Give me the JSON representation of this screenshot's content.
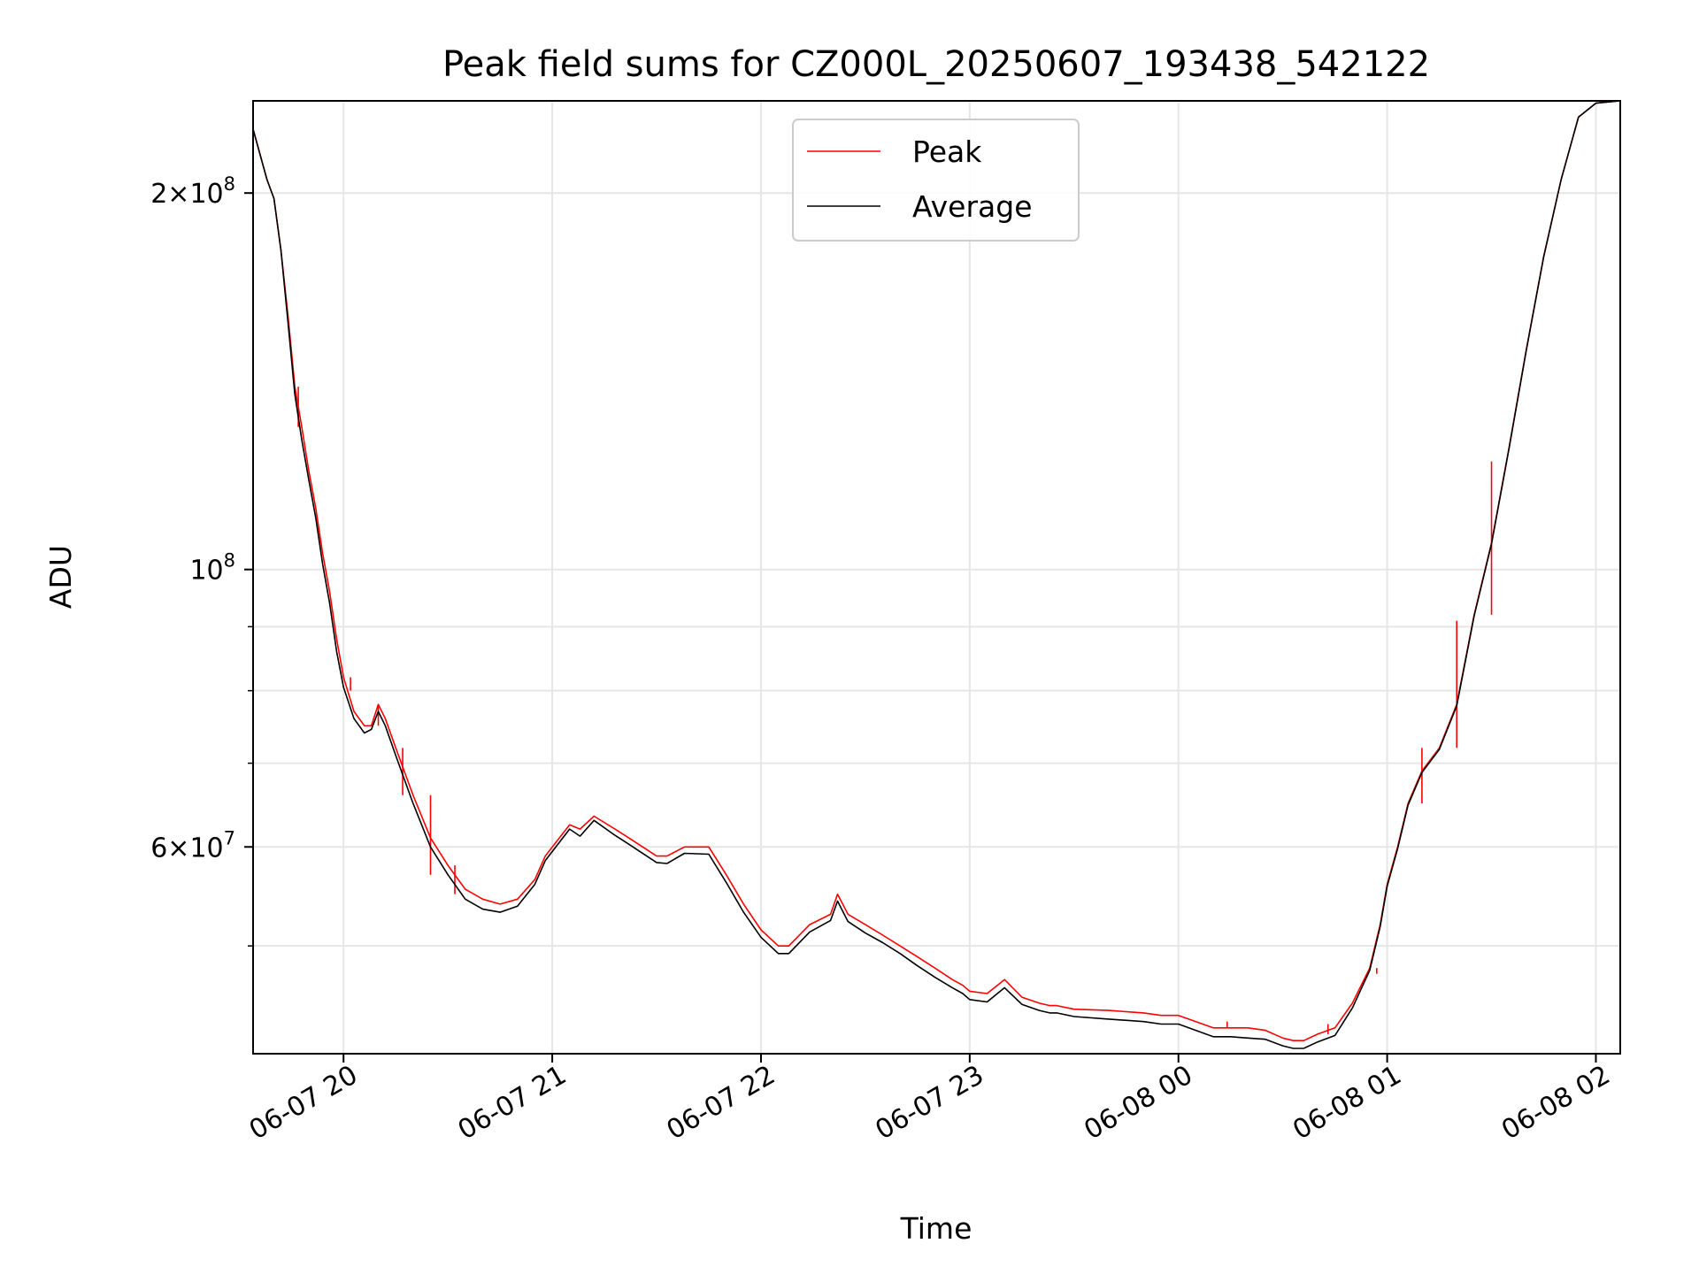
{
  "chart_data": {
    "type": "line",
    "title": "Peak field sums for CZ000L_20250607_193438_542122",
    "xlabel": "Time",
    "ylabel": "ADU",
    "y_scale": "log",
    "grid": true,
    "legend_position": "top-center",
    "xlim": [
      "2025-06-07 19:34",
      "2025-06-08 02:07"
    ],
    "ylim": [
      41000000,
      237000000
    ],
    "x_ticks": [
      {
        "value": "2025-06-07 20:00",
        "label": "06-07 20"
      },
      {
        "value": "2025-06-07 21:00",
        "label": "06-07 21"
      },
      {
        "value": "2025-06-07 22:00",
        "label": "06-07 22"
      },
      {
        "value": "2025-06-07 23:00",
        "label": "06-07 23"
      },
      {
        "value": "2025-06-08 00:00",
        "label": "06-08 00"
      },
      {
        "value": "2025-06-08 01:00",
        "label": "06-08 01"
      },
      {
        "value": "2025-06-08 02:00",
        "label": "06-08 02"
      }
    ],
    "y_ticks_major": [
      {
        "value": 200000000,
        "mant": "2",
        "exp": "8"
      },
      {
        "value": 100000000,
        "mant": "",
        "exp": "8"
      },
      {
        "value": 60000000,
        "mant": "6",
        "exp": "7"
      }
    ],
    "y_ticks_minor": [
      50000000,
      70000000,
      80000000,
      90000000
    ],
    "series": [
      {
        "name": "Peak",
        "color": "#ff0000",
        "x": [
          "2025-06-07 19:34",
          "2025-06-07 19:38",
          "2025-06-07 19:40",
          "2025-06-07 19:42",
          "2025-06-07 19:44",
          "2025-06-07 19:46",
          "2025-06-07 19:48",
          "2025-06-07 19:50",
          "2025-06-07 19:52",
          "2025-06-07 19:54",
          "2025-06-07 19:56",
          "2025-06-07 19:58",
          "2025-06-07 20:00",
          "2025-06-07 20:03",
          "2025-06-07 20:06",
          "2025-06-07 20:08",
          "2025-06-07 20:10",
          "2025-06-07 20:12",
          "2025-06-07 20:15",
          "2025-06-07 20:20",
          "2025-06-07 20:25",
          "2025-06-07 20:30",
          "2025-06-07 20:35",
          "2025-06-07 20:40",
          "2025-06-07 20:45",
          "2025-06-07 20:50",
          "2025-06-07 20:55",
          "2025-06-07 20:58",
          "2025-06-07 21:05",
          "2025-06-07 21:08",
          "2025-06-07 21:12",
          "2025-06-07 21:18",
          "2025-06-07 21:22",
          "2025-06-07 21:30",
          "2025-06-07 21:33",
          "2025-06-07 21:38",
          "2025-06-07 21:45",
          "2025-06-07 21:50",
          "2025-06-07 21:55",
          "2025-06-07 22:00",
          "2025-06-07 22:05",
          "2025-06-07 22:08",
          "2025-06-07 22:14",
          "2025-06-07 22:20",
          "2025-06-07 22:22",
          "2025-06-07 22:25",
          "2025-06-07 22:30",
          "2025-06-07 22:35",
          "2025-06-07 22:40",
          "2025-06-07 22:45",
          "2025-06-07 22:50",
          "2025-06-07 22:55",
          "2025-06-07 22:58",
          "2025-06-07 23:00",
          "2025-06-07 23:05",
          "2025-06-07 23:10",
          "2025-06-07 23:15",
          "2025-06-07 23:20",
          "2025-06-07 23:23",
          "2025-06-07 23:25",
          "2025-06-07 23:30",
          "2025-06-07 23:40",
          "2025-06-07 23:50",
          "2025-06-07 23:55",
          "2025-06-08 00:00",
          "2025-06-08 00:05",
          "2025-06-08 00:10",
          "2025-06-08 00:15",
          "2025-06-08 00:20",
          "2025-06-08 00:25",
          "2025-06-08 00:30",
          "2025-06-08 00:33",
          "2025-06-08 00:36",
          "2025-06-08 00:40",
          "2025-06-08 00:45",
          "2025-06-08 00:50",
          "2025-06-08 00:55",
          "2025-06-08 00:58",
          "2025-06-08 01:00",
          "2025-06-08 01:03",
          "2025-06-08 01:06",
          "2025-06-08 01:10",
          "2025-06-08 01:15",
          "2025-06-08 01:20",
          "2025-06-08 01:25",
          "2025-06-08 01:30",
          "2025-06-08 01:35",
          "2025-06-08 01:40",
          "2025-06-08 01:45",
          "2025-06-08 01:50",
          "2025-06-08 01:55",
          "2025-06-08 02:00",
          "2025-06-08 02:07"
        ],
        "values": [
          225,
          205,
          198,
          180,
          160,
          140,
          130,
          120,
          112,
          103,
          96,
          88,
          82,
          77,
          75,
          75,
          78,
          76,
          72,
          66,
          61,
          58,
          55.5,
          54.5,
          54,
          54.5,
          56.5,
          59,
          62.5,
          62,
          63.5,
          62,
          61,
          59,
          59,
          60,
          60,
          57,
          54,
          51.5,
          50,
          50,
          52,
          53,
          55,
          53,
          52,
          51,
          50,
          49,
          48,
          47,
          46.5,
          46,
          45.8,
          47,
          45.5,
          45,
          44.8,
          44.8,
          44.5,
          44.4,
          44.2,
          44,
          44,
          43.5,
          43,
          43,
          43,
          42.8,
          42.2,
          42,
          42,
          42.5,
          43,
          45,
          48,
          52,
          56,
          60,
          65,
          69,
          72,
          78,
          92,
          105,
          125,
          150,
          178,
          205,
          230,
          236,
          237
        ],
        "spikes": [
          {
            "x": "2025-06-07 19:47",
            "value": 130
          },
          {
            "x": "2025-06-07 20:02",
            "value": 80
          },
          {
            "x": "2025-06-07 20:10",
            "value": 78
          },
          {
            "x": "2025-06-07 20:17",
            "value": 66
          },
          {
            "x": "2025-06-07 20:25",
            "value": 57
          },
          {
            "x": "2025-06-07 20:32",
            "value": 55
          },
          {
            "x": "2025-06-08 00:14",
            "value": 43.5
          },
          {
            "x": "2025-06-08 00:43",
            "value": 43.3
          },
          {
            "x": "2025-06-08 00:57",
            "value": 47.5
          },
          {
            "x": "2025-06-08 01:10",
            "value": 72
          },
          {
            "x": "2025-06-08 01:20",
            "value": 91
          },
          {
            "x": "2025-06-08 01:30",
            "value": 122
          }
        ],
        "value_unit": "millions ADU"
      },
      {
        "name": "Average",
        "color": "#000000",
        "x": [
          "2025-06-07 19:34",
          "2025-06-07 19:38",
          "2025-06-07 19:40",
          "2025-06-07 19:42",
          "2025-06-07 19:44",
          "2025-06-07 19:46",
          "2025-06-07 19:48",
          "2025-06-07 19:50",
          "2025-06-07 19:52",
          "2025-06-07 19:54",
          "2025-06-07 19:56",
          "2025-06-07 19:58",
          "2025-06-07 20:00",
          "2025-06-07 20:03",
          "2025-06-07 20:06",
          "2025-06-07 20:08",
          "2025-06-07 20:10",
          "2025-06-07 20:12",
          "2025-06-07 20:15",
          "2025-06-07 20:20",
          "2025-06-07 20:25",
          "2025-06-07 20:30",
          "2025-06-07 20:35",
          "2025-06-07 20:40",
          "2025-06-07 20:45",
          "2025-06-07 20:50",
          "2025-06-07 20:55",
          "2025-06-07 20:58",
          "2025-06-07 21:05",
          "2025-06-07 21:08",
          "2025-06-07 21:12",
          "2025-06-07 21:18",
          "2025-06-07 21:22",
          "2025-06-07 21:30",
          "2025-06-07 21:33",
          "2025-06-07 21:38",
          "2025-06-07 21:45",
          "2025-06-07 21:50",
          "2025-06-07 21:55",
          "2025-06-07 22:00",
          "2025-06-07 22:05",
          "2025-06-07 22:08",
          "2025-06-07 22:14",
          "2025-06-07 22:20",
          "2025-06-07 22:22",
          "2025-06-07 22:25",
          "2025-06-07 22:30",
          "2025-06-07 22:35",
          "2025-06-07 22:40",
          "2025-06-07 22:45",
          "2025-06-07 22:50",
          "2025-06-07 22:55",
          "2025-06-07 22:58",
          "2025-06-07 23:00",
          "2025-06-07 23:05",
          "2025-06-07 23:10",
          "2025-06-07 23:15",
          "2025-06-07 23:20",
          "2025-06-07 23:23",
          "2025-06-07 23:25",
          "2025-06-07 23:30",
          "2025-06-07 23:40",
          "2025-06-07 23:50",
          "2025-06-07 23:55",
          "2025-06-08 00:00",
          "2025-06-08 00:05",
          "2025-06-08 00:10",
          "2025-06-08 00:15",
          "2025-06-08 00:20",
          "2025-06-08 00:25",
          "2025-06-08 00:30",
          "2025-06-08 00:33",
          "2025-06-08 00:36",
          "2025-06-08 00:40",
          "2025-06-08 00:45",
          "2025-06-08 00:50",
          "2025-06-08 00:55",
          "2025-06-08 00:58",
          "2025-06-08 01:00",
          "2025-06-08 01:03",
          "2025-06-08 01:06",
          "2025-06-08 01:10",
          "2025-06-08 01:15",
          "2025-06-08 01:20",
          "2025-06-08 01:25",
          "2025-06-08 01:30",
          "2025-06-08 01:35",
          "2025-06-08 01:40",
          "2025-06-08 01:45",
          "2025-06-08 01:50",
          "2025-06-08 01:55",
          "2025-06-08 02:00",
          "2025-06-08 02:07"
        ],
        "values": [
          225,
          205,
          198,
          180,
          158,
          138,
          127,
          118,
          110,
          101,
          94,
          86,
          80.5,
          76,
          74,
          74.5,
          77,
          75,
          71,
          65,
          60,
          57,
          54.5,
          53.5,
          53.2,
          53.8,
          56,
          58.5,
          62,
          61.2,
          63,
          61.3,
          60.3,
          58.3,
          58.2,
          59.3,
          59.2,
          56.2,
          53.2,
          50.8,
          49.3,
          49.3,
          51.3,
          52.4,
          54.3,
          52.3,
          51.2,
          50.3,
          49.3,
          48.2,
          47.2,
          46.3,
          45.8,
          45.3,
          45.1,
          46.3,
          44.9,
          44.4,
          44.2,
          44.2,
          43.9,
          43.7,
          43.5,
          43.3,
          43.3,
          42.8,
          42.3,
          42.3,
          42.2,
          42.1,
          41.6,
          41.4,
          41.4,
          41.9,
          42.4,
          44.6,
          47.8,
          51.8,
          55.8,
          59.8,
          64.8,
          68.8,
          71.8,
          77.8,
          91.8,
          104.8,
          124.8,
          149.8,
          177.8,
          205,
          230,
          236,
          237
        ],
        "value_unit": "millions ADU"
      }
    ]
  }
}
